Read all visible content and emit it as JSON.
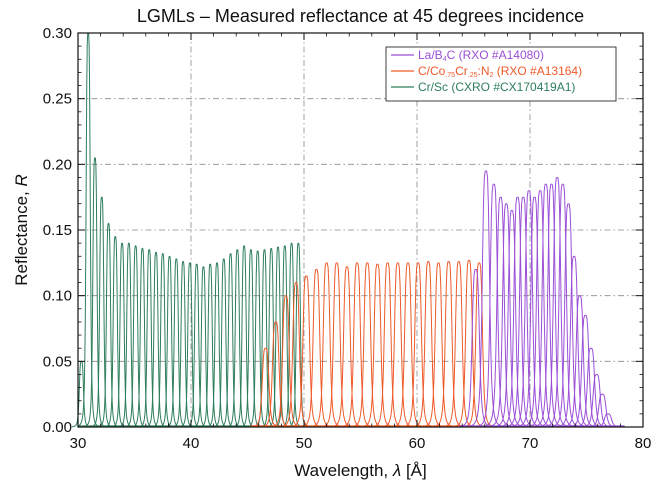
{
  "chart_data": {
    "type": "line",
    "title": "LGMLs – Measured reflectance at 45 degrees incidence",
    "xlabel": {
      "prefix": "Wavelength, ",
      "symbol": "λ",
      "suffix": " [Å]"
    },
    "ylabel": {
      "prefix": "Reflectance, ",
      "symbol": "R"
    },
    "xlim": [
      30,
      80
    ],
    "ylim": [
      0,
      0.3
    ],
    "x_ticks": [
      "30",
      "40",
      "50",
      "60",
      "70",
      "80"
    ],
    "y_ticks": [
      "0.00",
      "0.05",
      "0.10",
      "0.15",
      "0.20",
      "0.25",
      "0.30"
    ],
    "grid": true,
    "legend_position": "top-right",
    "series": [
      {
        "name": "La/B4C (RXO #A14080)",
        "name_parts": [
          {
            "text": "La/B",
            "sub": false
          },
          {
            "text": "4",
            "sub": true
          },
          {
            "text": "C (RXO #A14080)",
            "sub": false
          }
        ],
        "color": "#9b4fd6",
        "peak_centers": [
          65.2,
          66.1,
          66.8,
          67.4,
          67.9,
          68.4,
          68.9,
          69.4,
          69.9,
          70.4,
          70.9,
          71.4,
          71.9,
          72.4,
          72.9,
          73.4,
          73.9,
          74.4,
          74.9,
          75.4,
          75.9,
          76.4,
          76.9
        ],
        "peak_values": [
          0.12,
          0.195,
          0.185,
          0.175,
          0.17,
          0.165,
          0.175,
          0.175,
          0.18,
          0.175,
          0.18,
          0.185,
          0.185,
          0.19,
          0.185,
          0.17,
          0.13,
          0.1,
          0.085,
          0.06,
          0.04,
          0.025,
          0.01
        ],
        "peak_width": 0.35
      },
      {
        "name": "C/Co.75Cr.25:N2 (RXO #A13164)",
        "name_parts": [
          {
            "text": "C/Co",
            "sub": false
          },
          {
            "text": ".75",
            "sub": true
          },
          {
            "text": "Cr",
            "sub": false
          },
          {
            "text": ".25",
            "sub": true
          },
          {
            "text": ":N",
            "sub": false
          },
          {
            "text": "2",
            "sub": true
          },
          {
            "text": " (RXO #A13164)",
            "sub": false
          }
        ],
        "color": "#ee5a2a",
        "peak_centers": [
          46.6,
          47.5,
          48.4,
          49.3,
          50.2,
          51.1,
          52.0,
          52.9,
          53.8,
          54.7,
          55.6,
          56.5,
          57.4,
          58.3,
          59.2,
          60.1,
          61.0,
          61.9,
          62.8,
          63.7,
          64.6,
          65.5
        ],
        "peak_values": [
          0.06,
          0.08,
          0.1,
          0.11,
          0.115,
          0.12,
          0.125,
          0.125,
          0.122,
          0.125,
          0.125,
          0.124,
          0.125,
          0.125,
          0.125,
          0.125,
          0.126,
          0.125,
          0.126,
          0.126,
          0.127,
          0.125
        ],
        "peak_width": 0.32
      },
      {
        "name": "Cr/Sc (CXRO #CX170419A1)",
        "name_parts": [
          {
            "text": "Cr/Sc (CXRO #CX170419A1)",
            "sub": false
          }
        ],
        "color": "#2e7d5b",
        "peak_centers": [
          30.3,
          30.9,
          31.5,
          32.1,
          32.7,
          33.3,
          33.9,
          34.5,
          35.1,
          35.7,
          36.3,
          36.9,
          37.5,
          38.1,
          38.7,
          39.3,
          39.9,
          40.5,
          41.1,
          41.7,
          42.3,
          42.9,
          43.5,
          44.1,
          44.7,
          45.3,
          45.9,
          46.5,
          47.1,
          47.7,
          48.3,
          48.9,
          49.5
        ],
        "peak_values": [
          0.05,
          0.3,
          0.205,
          0.175,
          0.155,
          0.145,
          0.14,
          0.14,
          0.138,
          0.136,
          0.135,
          0.133,
          0.132,
          0.13,
          0.128,
          0.126,
          0.125,
          0.124,
          0.122,
          0.124,
          0.125,
          0.128,
          0.132,
          0.135,
          0.138,
          0.135,
          0.134,
          0.135,
          0.136,
          0.137,
          0.138,
          0.14,
          0.14
        ],
        "peak_width": 0.2
      }
    ]
  }
}
